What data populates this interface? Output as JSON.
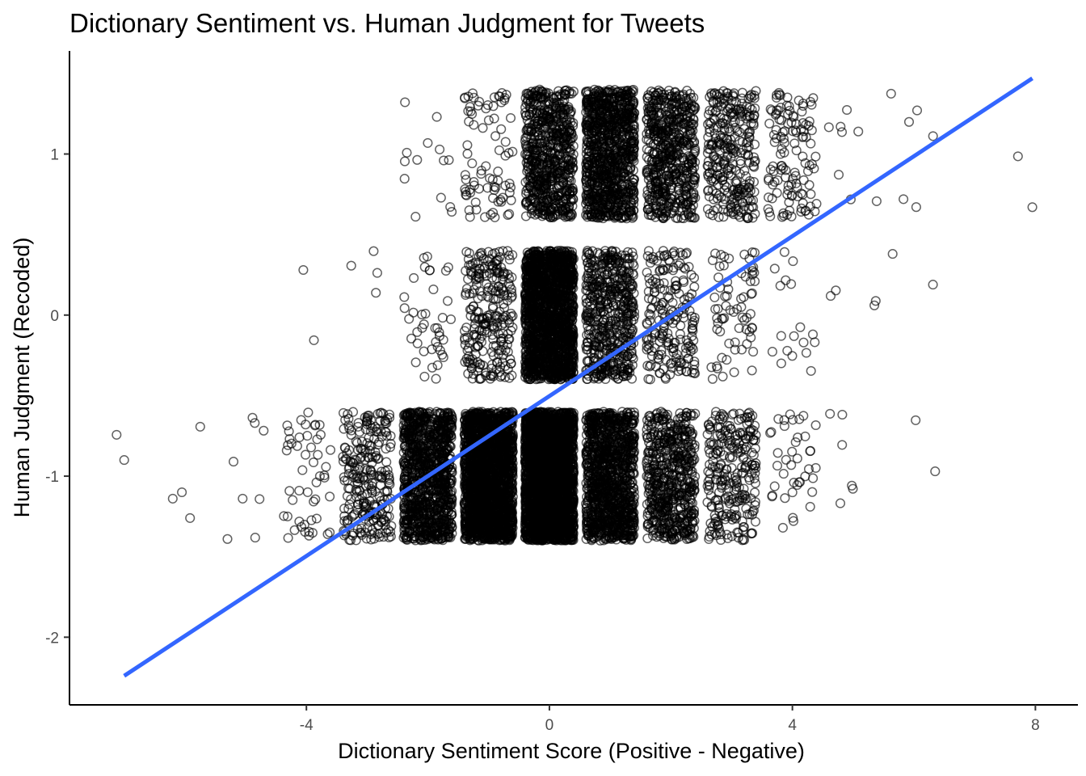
{
  "chart_data": {
    "type": "scatter",
    "title": "Dictionary Sentiment vs. Human Judgment for Tweets",
    "xlabel": "Dictionary Sentiment Score (Positive - Negative)",
    "ylabel": "Human Judgment (Recoded)",
    "xlim": [
      -7.9,
      8.7
    ],
    "ylim": [
      -2.42,
      1.64
    ],
    "x_ticks": [
      -4,
      0,
      4,
      8
    ],
    "y_ticks": [
      -2,
      -1,
      0,
      1
    ],
    "x_tick_labels": [
      "-4",
      "0",
      "4",
      "8"
    ],
    "y_tick_labels": [
      "-2",
      "-1",
      "0",
      "1"
    ],
    "grid": false,
    "legend": "none",
    "jitter": {
      "x": 0.4,
      "y": 0.4
    },
    "colors": {
      "points": "#000000",
      "fit_line": "#3366ff"
    },
    "series": [
      {
        "kind": "jittered_points",
        "counts_by_category": {
          "1": [
            [
              -2,
              14
            ],
            [
              -1,
              80
            ],
            [
              0,
              700
            ],
            [
              1,
              1000
            ],
            [
              2,
              600
            ],
            [
              3,
              300
            ],
            [
              4,
              120
            ],
            [
              5,
              8
            ],
            [
              6,
              6
            ],
            [
              8,
              1
            ]
          ],
          "0": [
            [
              -4,
              1
            ],
            [
              -3,
              4
            ],
            [
              -2,
              40
            ],
            [
              -1,
              260
            ],
            [
              0,
              1800
            ],
            [
              1,
              550
            ],
            [
              2,
              200
            ],
            [
              3,
              70
            ],
            [
              4,
              18
            ],
            [
              5,
              3
            ],
            [
              6,
              1
            ]
          ],
          "-1": [
            [
              -7,
              1
            ],
            [
              -6,
              2
            ],
            [
              -5,
              4
            ],
            [
              -4,
              50
            ],
            [
              -3,
              260
            ],
            [
              -2,
              1100
            ],
            [
              -1,
              2200
            ],
            [
              0,
              3000
            ],
            [
              1,
              1200
            ],
            [
              2,
              600
            ],
            [
              3,
              260
            ],
            [
              4,
              40
            ],
            [
              5,
              6
            ],
            [
              6,
              1
            ]
          ]
        },
        "outliers": [
          {
            "x": -7.0,
            "y": -0.9
          },
          {
            "x": -6.2,
            "y": -1.14
          },
          {
            "x": -6.05,
            "y": -1.1
          },
          {
            "x": -5.3,
            "y": -1.39
          },
          {
            "x": -5.2,
            "y": -0.91
          },
          {
            "x": -5.05,
            "y": -1.14
          },
          {
            "x": -4.85,
            "y": -0.67
          },
          {
            "x": -4.05,
            "y": 0.28
          },
          {
            "x": 5.65,
            "y": 0.38
          },
          {
            "x": 5.35,
            "y": 0.06
          },
          {
            "x": 6.35,
            "y": -0.97
          },
          {
            "x": 7.95,
            "y": 0.67
          }
        ]
      },
      {
        "kind": "linear_fit",
        "x": [
          -7.0,
          7.95
        ],
        "y": [
          -2.24,
          1.47
        ]
      }
    ]
  }
}
